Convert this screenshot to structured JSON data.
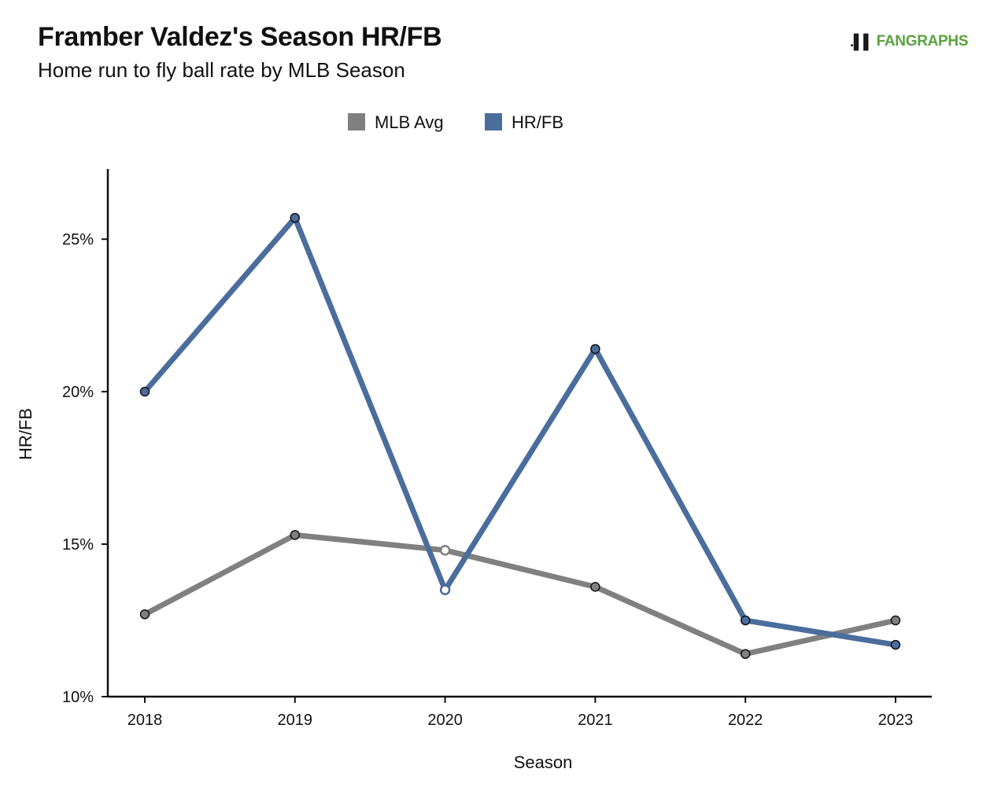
{
  "logo": {
    "text": "FANGRAPHS",
    "icon": "batter-icon"
  },
  "chart_data": {
    "type": "line",
    "title": "Framber Valdez's Season HR/FB",
    "subtitle": "Home run to fly ball rate by MLB Season",
    "xlabel": "Season",
    "ylabel": "HR/FB",
    "x": [
      2018,
      2019,
      2020,
      2021,
      2022,
      2023
    ],
    "x_tick_labels": [
      "2018",
      "2019",
      "2020",
      "2021",
      "2022",
      "2023"
    ],
    "y_ticks": [
      10,
      15,
      20,
      25
    ],
    "y_tick_labels": [
      "10%",
      "15%",
      "20%",
      "25%"
    ],
    "ylim": [
      10,
      27.3
    ],
    "grid": false,
    "legend_position": "top-center",
    "series": [
      {
        "name": "MLB Avg",
        "color": "#808080",
        "values": [
          12.7,
          15.3,
          14.8,
          13.6,
          11.4,
          12.5
        ]
      },
      {
        "name": "HR/FB",
        "color": "#4a6d9c",
        "values": [
          20.0,
          25.7,
          13.5,
          21.4,
          12.5,
          11.7
        ]
      }
    ]
  }
}
